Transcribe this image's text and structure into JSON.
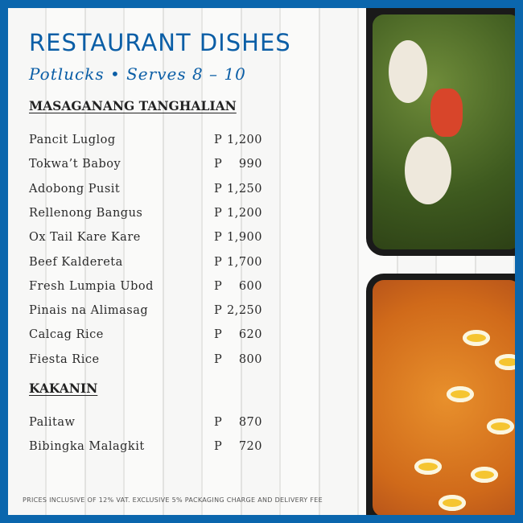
{
  "header": {
    "title": "RESTAURANT DISHES",
    "subtitle": "Potlucks • Serves 8 – 10"
  },
  "sections": [
    {
      "title": "MASAGANANG TANGHALIAN",
      "items": [
        {
          "name": "Pancit Luglog",
          "currency": "P",
          "price": "1,200"
        },
        {
          "name": "Tokwa’t Baboy",
          "currency": "P",
          "price": "990"
        },
        {
          "name": "Adobong Pusit",
          "currency": "P",
          "price": "1,250"
        },
        {
          "name": "Rellenong Bangus",
          "currency": "P",
          "price": "1,200"
        },
        {
          "name": "Ox Tail Kare Kare",
          "currency": "P",
          "price": "1,900"
        },
        {
          "name": "Beef Kaldereta",
          "currency": "P",
          "price": "1,700"
        },
        {
          "name": "Fresh Lumpia Ubod",
          "currency": "P",
          "price": "600"
        },
        {
          "name": "Pinais na Alimasag",
          "currency": "P",
          "price": "2,250"
        },
        {
          "name": "Calcag Rice",
          "currency": "P",
          "price": "620"
        },
        {
          "name": "Fiesta Rice",
          "currency": "P",
          "price": "800"
        }
      ]
    },
    {
      "title": "KAKANIN",
      "items": [
        {
          "name": "Palitaw",
          "currency": "P",
          "price": "870"
        },
        {
          "name": "Bibingka Malagkit",
          "currency": "P",
          "price": "720"
        }
      ]
    }
  ],
  "footer": "PRICES INCLUSIVE OF 12% VAT. EXCLUSIVE 5% PACKAGING CHARGE AND DELIVERY FEE",
  "colors": {
    "brand": "#0b66ad"
  }
}
